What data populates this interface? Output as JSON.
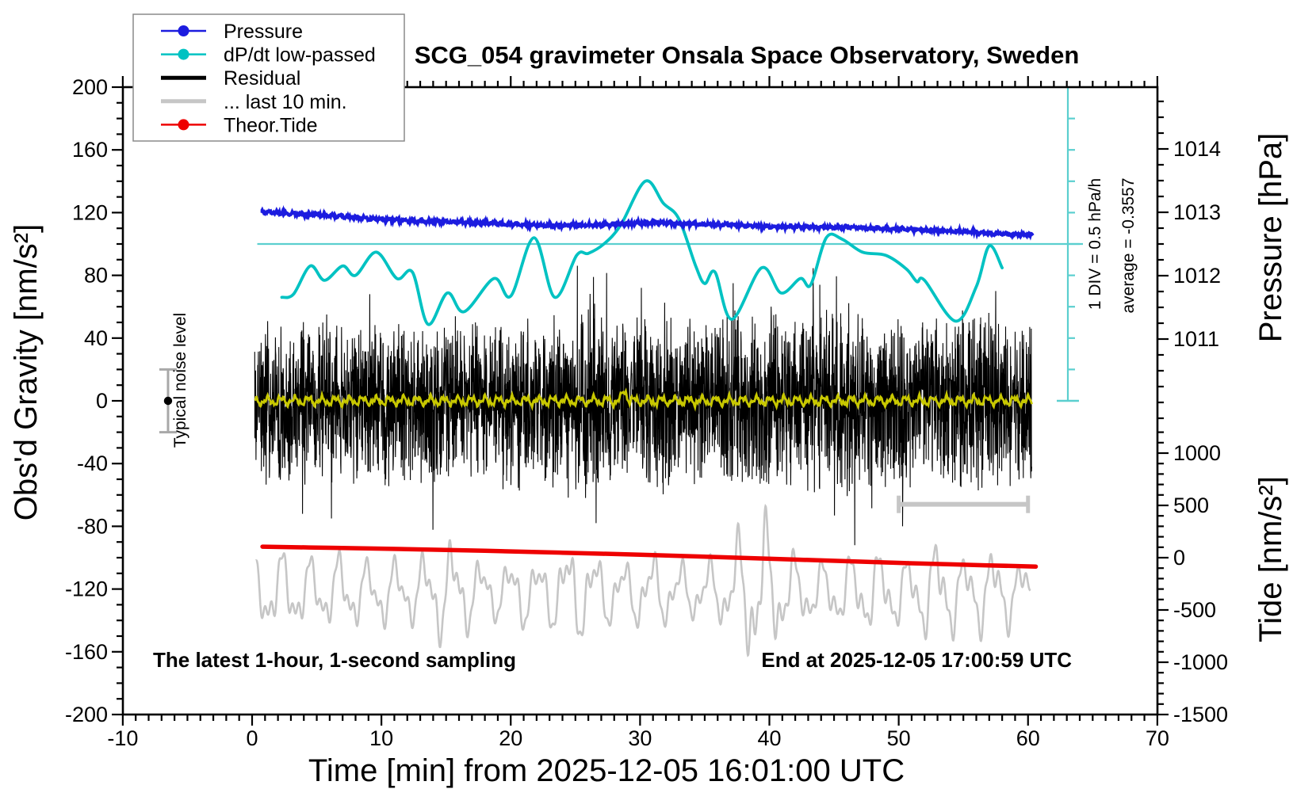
{
  "title": "SCG_054 gravimeter Onsala Space Observatory, Sweden",
  "annotations": {
    "sampling_note": "The latest 1-hour, 1-second sampling",
    "end_time": "End at 2025-12-05 17:00:59 UTC",
    "div_scale": "1 DIV = 0.5 hPa/h",
    "average": "average = -0.3557",
    "noise_label": "Typical noise level"
  },
  "colors": {
    "blue": "#1c1cdf",
    "cyan": "#00c2c2",
    "teal_line": "#5bcfcf",
    "red": "#ee0000",
    "yellow": "#c8c800",
    "gray": "#c6c6c6",
    "noise_gray": "#a8a8a8",
    "legend_border": "#8a8a8a",
    "black": "#000000"
  },
  "legend": {
    "items": [
      {
        "label": "Pressure",
        "color": "#1c1cdf",
        "lw": 2.5,
        "marker": true
      },
      {
        "label": "dP/dt low-passed",
        "color": "#00c2c2",
        "lw": 2.5,
        "marker": true
      },
      {
        "label": "Residual",
        "color": "#000000",
        "lw": 5,
        "marker": false
      },
      {
        "label": "... last 10 min.",
        "color": "#c6c6c6",
        "lw": 5,
        "marker": false
      },
      {
        "label": "Theor.Tide",
        "color": "#ee0000",
        "lw": 2.5,
        "marker": true
      }
    ]
  },
  "chart_data": {
    "type": "line",
    "title": "SCG_054 gravimeter Onsala Space Observatory, Sweden",
    "x_axis": {
      "label": "Time [min] from 2025-12-05 16:01:00 UTC",
      "min": -10,
      "max": 70,
      "major_ticks": [
        -10,
        0,
        10,
        20,
        30,
        40,
        50,
        60,
        70
      ],
      "minor_step": 1
    },
    "y_axis_gravity": {
      "label": "Obs'd Gravity [nm/s²]",
      "min": -200,
      "max": 200,
      "major_ticks": [
        200,
        160,
        120,
        80,
        40,
        0,
        -40,
        -80,
        -120,
        -160,
        -200
      ],
      "minor_step": 10
    },
    "y_axis_pressure": {
      "label": "Pressure [hPa]",
      "major_ticks": [
        1014,
        1013,
        1012,
        1011
      ],
      "minor_step_hpa": 0.25
    },
    "y_axis_tide": {
      "label": "Tide [nm/s²]",
      "major_ticks": [
        1000,
        500,
        0,
        -500,
        -1000,
        -1500
      ],
      "minor_step": 100
    },
    "series": [
      {
        "name": "Pressure",
        "units": "hPa",
        "color": "#1c1cdf",
        "points": [
          [
            0.7,
            1013.01
          ],
          [
            3,
            1012.98
          ],
          [
            5,
            1012.96
          ],
          [
            8,
            1012.92
          ],
          [
            10,
            1012.89
          ],
          [
            13,
            1012.86
          ],
          [
            15,
            1012.85
          ],
          [
            18,
            1012.83
          ],
          [
            20,
            1012.81
          ],
          [
            22,
            1012.8
          ],
          [
            24,
            1012.79
          ],
          [
            26,
            1012.8
          ],
          [
            28,
            1012.81
          ],
          [
            30,
            1012.83
          ],
          [
            31.5,
            1012.84
          ],
          [
            33,
            1012.82
          ],
          [
            35,
            1012.81
          ],
          [
            37,
            1012.8
          ],
          [
            39,
            1012.78
          ],
          [
            41,
            1012.77
          ],
          [
            43,
            1012.77
          ],
          [
            45,
            1012.76
          ],
          [
            47,
            1012.76
          ],
          [
            49,
            1012.74
          ],
          [
            51,
            1012.73
          ],
          [
            53,
            1012.71
          ],
          [
            55,
            1012.7
          ],
          [
            57,
            1012.67
          ],
          [
            58.5,
            1012.65
          ],
          [
            60.4,
            1012.64
          ]
        ],
        "jitter": 1.1
      },
      {
        "name": "dP/dt low-passed",
        "units": "hPa/h",
        "color": "#00c2c2",
        "zero_at_gravity": 100,
        "gravity_units_per_hpa_per_h": 40,
        "points": [
          [
            2.3,
            -0.85
          ],
          [
            3.2,
            -0.8
          ],
          [
            4.5,
            -0.35
          ],
          [
            5.6,
            -0.58
          ],
          [
            7.0,
            -0.35
          ],
          [
            8.0,
            -0.5
          ],
          [
            9.6,
            -0.13
          ],
          [
            11.2,
            -0.55
          ],
          [
            12.4,
            -0.45
          ],
          [
            13.6,
            -1.28
          ],
          [
            15.1,
            -0.78
          ],
          [
            16.4,
            -1.08
          ],
          [
            18.7,
            -0.55
          ],
          [
            20.0,
            -0.83
          ],
          [
            21.8,
            0.1
          ],
          [
            23.4,
            -0.85
          ],
          [
            25.1,
            -0.18
          ],
          [
            26.0,
            -0.15
          ],
          [
            27.2,
            0.0
          ],
          [
            28.5,
            0.3
          ],
          [
            30.4,
            1.0
          ],
          [
            31.8,
            0.65
          ],
          [
            33.0,
            0.4
          ],
          [
            34.3,
            -0.35
          ],
          [
            35.0,
            -0.63
          ],
          [
            35.8,
            -0.45
          ],
          [
            37.1,
            -1.2
          ],
          [
            39.4,
            -0.38
          ],
          [
            40.9,
            -0.78
          ],
          [
            42.4,
            -0.55
          ],
          [
            43.2,
            -0.65
          ],
          [
            44.4,
            0.1
          ],
          [
            45.6,
            0.08
          ],
          [
            47.2,
            -0.13
          ],
          [
            49.0,
            -0.18
          ],
          [
            50.6,
            -0.4
          ],
          [
            51.4,
            -0.6
          ],
          [
            52.0,
            -0.58
          ],
          [
            54.4,
            -1.23
          ],
          [
            56.0,
            -0.68
          ],
          [
            57.0,
            -0.03
          ],
          [
            58.0,
            -0.38
          ]
        ]
      },
      {
        "name": "Residual",
        "units": "nm/s2",
        "color": "#000000",
        "mean": 0,
        "t_start": 0.2,
        "t_end": 60.3,
        "sample_step_min": 0.016667,
        "amplitude_per_min": [
          55,
          56,
          58,
          60,
          56,
          54,
          57,
          58,
          56,
          52,
          54,
          57,
          55,
          58,
          60,
          57,
          54,
          55,
          57,
          54,
          55,
          58,
          56,
          55,
          58,
          62,
          66,
          62,
          56,
          54,
          56,
          59,
          61,
          58,
          56,
          54,
          56,
          61,
          58,
          56,
          58,
          56,
          54,
          58,
          60,
          62,
          63,
          58,
          54,
          56,
          58,
          56,
          54,
          53,
          56,
          58,
          60,
          62,
          58,
          55,
          53
        ],
        "spikes": [
          [
            3.9,
            -72
          ],
          [
            9.1,
            68
          ],
          [
            26.4,
            79
          ],
          [
            26.6,
            -78
          ],
          [
            30.1,
            72
          ],
          [
            37.2,
            75
          ],
          [
            43.9,
            74
          ],
          [
            46.6,
            -92
          ],
          [
            50.3,
            -80
          ],
          [
            57.5,
            70
          ]
        ]
      },
      {
        "name": "... last 10 min.",
        "units": "nm/s2 (expanded last 10 minutes of residual)",
        "color": "#c6c6c6",
        "center_gravity": -122,
        "t_start": 0.3,
        "t_end": 60.2,
        "periods_min": [
          2.2,
          1.07,
          0.53
        ],
        "weights": [
          0.62,
          0.3,
          0.18
        ],
        "amplitude_per_min": [
          26,
          28,
          30,
          28,
          26,
          24,
          26,
          28,
          26,
          22,
          26,
          24,
          22,
          26,
          32,
          38,
          34,
          26,
          22,
          20,
          24,
          26,
          22,
          26,
          32,
          36,
          32,
          26,
          24,
          22,
          26,
          28,
          24,
          22,
          20,
          24,
          22,
          32,
          48,
          58,
          50,
          34,
          26,
          24,
          22,
          24,
          26,
          28,
          30,
          28,
          26,
          24,
          32,
          38,
          32,
          26,
          28,
          32,
          28,
          24,
          22
        ]
      },
      {
        "name": "Theor.Tide",
        "units": "nm/s2 (tide axis)",
        "color": "#ee0000",
        "points": [
          [
            0.8,
            105
          ],
          [
            6,
            95
          ],
          [
            12,
            82
          ],
          [
            18,
            66
          ],
          [
            24,
            48
          ],
          [
            30,
            28
          ],
          [
            36,
            6
          ],
          [
            42,
            -18
          ],
          [
            48,
            -42
          ],
          [
            54,
            -64
          ],
          [
            60.6,
            -85
          ]
        ]
      },
      {
        "name": "smoothed residual",
        "units": "nm/s2",
        "color": "#c8c800",
        "center_gravity": 0,
        "amplitudes": [
          2.1,
          1.2,
          0.8
        ],
        "periods_min": [
          1.05,
          0.42,
          0.21
        ],
        "bump": {
          "t": 28.8,
          "height": 6.5,
          "width": 0.25
        },
        "t_start": 0.2,
        "t_end": 60.3
      }
    ],
    "extras": {
      "dpdt_zero_line": {
        "gravity": 100,
        "t_from": 0.4,
        "t_to": 64
      },
      "dpdt_scale_bar": {
        "divisions": 10,
        "div_equals": "0.5 hPa/h",
        "top_gravity": 200,
        "bottom_gravity": 0,
        "zero_gravity": 100
      },
      "last10_range_bar": {
        "from_min": 50,
        "to_min": 60,
        "gravity": -66
      },
      "noise_marker": {
        "x_min": -6.5,
        "center": 0,
        "half_range": 20
      }
    },
    "legend_position": "top-left",
    "grid": false
  }
}
